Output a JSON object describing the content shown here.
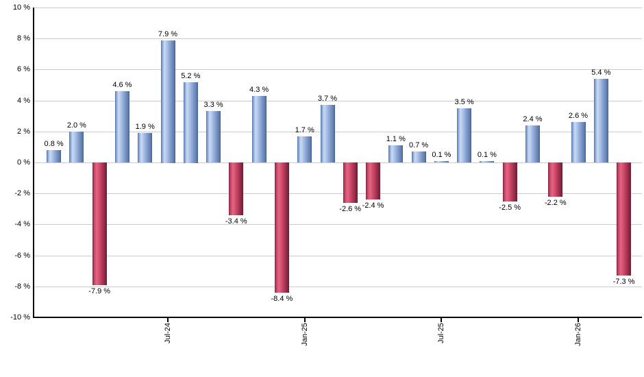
{
  "chart_data": {
    "type": "bar",
    "title": "",
    "xlabel": "",
    "ylabel": "",
    "unit": "%",
    "ylim": [
      -10,
      10
    ],
    "ytick_step": 2,
    "grid": true,
    "legend_position": "none",
    "values": [
      0.8,
      2.0,
      -7.9,
      4.6,
      1.9,
      7.9,
      5.2,
      3.3,
      -3.4,
      4.3,
      -8.4,
      1.7,
      3.7,
      -2.6,
      -2.4,
      1.1,
      0.7,
      0.1,
      3.5,
      0.1,
      -2.5,
      2.4,
      -2.2,
      2.6,
      5.4,
      -7.3
    ],
    "bar_labels": [
      "0.8 %",
      "2.0 %",
      "-7.9 %",
      "4.6 %",
      "1.9 %",
      "7.9 %",
      "5.2 %",
      "3.3 %",
      "-3.4 %",
      "4.3 %",
      "-8.4 %",
      "1.7 %",
      "3.7 %",
      "-2.6 %",
      "-2.4 %",
      "1.1 %",
      "0.7 %",
      "0.1 %",
      "3.5 %",
      "0.1 %",
      "-2.5 %",
      "2.4 %",
      "-2.2 %",
      "2.6 %",
      "5.4 %",
      "-7.3 %"
    ],
    "yticks": [
      {
        "value": 10,
        "label": "10 %"
      },
      {
        "value": 8,
        "label": "8 %"
      },
      {
        "value": 6,
        "label": "6 %"
      },
      {
        "value": 4,
        "label": "4 %"
      },
      {
        "value": 2,
        "label": "2 %"
      },
      {
        "value": 0,
        "label": "0 %"
      },
      {
        "value": -2,
        "label": "-2 %"
      },
      {
        "value": -4,
        "label": "-4 %"
      },
      {
        "value": -6,
        "label": "-6 %"
      },
      {
        "value": -8,
        "label": "-8 %"
      },
      {
        "value": -10,
        "label": "-10 %"
      }
    ],
    "xticks": [
      {
        "bar_index": 5,
        "label": "Jul-24"
      },
      {
        "bar_index": 11,
        "label": "Jan-25"
      },
      {
        "bar_index": 17,
        "label": "Jul-25"
      },
      {
        "bar_index": 23,
        "label": "Jan-26"
      }
    ],
    "colors": {
      "background": "#FFFFFF",
      "gridline": "#CBCBCB",
      "axis": "#000000",
      "label_text": "#000000",
      "positive_bar_gradient": "linear-gradient(90deg, #4A6AA0 0%, #7E9CD0 7%, #CADBF3 24%, #ABC2E6 42%, #8FA9D6 58%, #7791C2 74%, #5E7DAC 90%, #42618F 100%)",
      "negative_bar_gradient": "linear-gradient(90deg, #7C2240 0%, #BC4263 10%, #E6647F 28%, #D65273 44%, #B93D5C 62%, #972C4A 80%, #6E1C33 100%)"
    }
  }
}
